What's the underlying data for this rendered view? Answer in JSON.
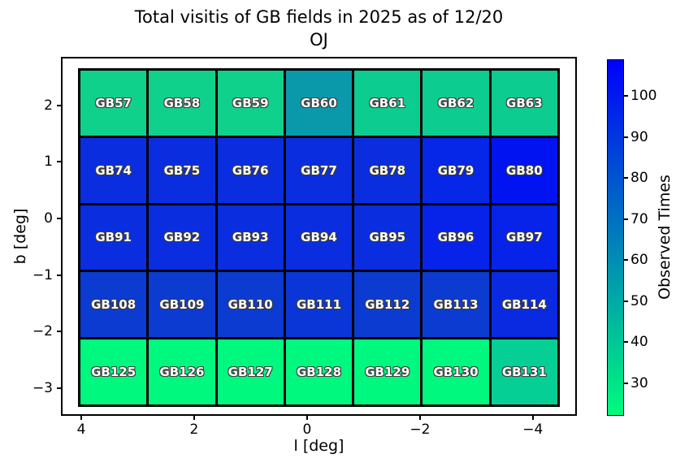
{
  "figure": {
    "title_line1": "Total visitis of GB fields in 2025 as of 12/20",
    "title_line2": "OJ"
  },
  "axes": {
    "xlabel": "l [deg]",
    "ylabel": "b [deg]",
    "x_ticks": [
      {
        "label": "4",
        "value": 4
      },
      {
        "label": "2",
        "value": 2
      },
      {
        "label": "0",
        "value": 0
      },
      {
        "label": "−2",
        "value": -2
      },
      {
        "label": "−4",
        "value": -4
      }
    ],
    "y_ticks": [
      {
        "label": "2",
        "value": 2
      },
      {
        "label": "1",
        "value": 1
      },
      {
        "label": "0",
        "value": 0
      },
      {
        "label": "−1",
        "value": -1
      },
      {
        "label": "−2",
        "value": -2
      },
      {
        "label": "−3",
        "value": -3
      }
    ],
    "xlim": [
      4.36,
      -4.78
    ],
    "ylim_bottom": -3.49,
    "ylim_top": 2.86,
    "x_inverted": true
  },
  "colorbar": {
    "label": "Observed Times",
    "ticks": [
      100,
      90,
      80,
      70,
      60,
      50,
      40,
      30
    ],
    "vmin": 22,
    "vmax": 109,
    "gradient_top_color": "#0000fa",
    "gradient_bottom_color": "#00fb7d"
  },
  "chart_data": {
    "type": "heatmap",
    "title": "Total visitis of GB fields in 2025 as of 12/20 OJ",
    "xlabel": "l [deg]",
    "ylabel": "b [deg]",
    "colorbar_label": "Observed Times",
    "colormap": "winter_r",
    "color_scale": {
      "vmin": 22,
      "vmax": 109
    },
    "grid_shape": {
      "rows": 5,
      "cols": 7
    },
    "l_centers": [
      3.4,
      2.2,
      1.0,
      -0.2,
      -1.4,
      -2.6,
      -3.9
    ],
    "b_centers": [
      2.05,
      0.85,
      -0.35,
      -1.55,
      -2.7
    ],
    "rows": [
      {
        "b_center": 2.05,
        "cells": [
          {
            "label": "GB57",
            "color": "#0fd18b",
            "value_est": 33
          },
          {
            "label": "GB58",
            "color": "#0fd18b",
            "value_est": 33
          },
          {
            "label": "GB59",
            "color": "#0fd18b",
            "value_est": 33
          },
          {
            "label": "GB60",
            "color": "#0a99ab",
            "value_est": 55
          },
          {
            "label": "GB61",
            "color": "#0ccc8f",
            "value_est": 34
          },
          {
            "label": "GB62",
            "color": "#0ccc8f",
            "value_est": 34
          },
          {
            "label": "GB63",
            "color": "#0ccc8f",
            "value_est": 34
          }
        ]
      },
      {
        "b_center": 0.85,
        "cells": [
          {
            "label": "GB74",
            "color": "#0a2edf",
            "value_est": 91
          },
          {
            "label": "GB75",
            "color": "#0a2edf",
            "value_est": 91
          },
          {
            "label": "GB76",
            "color": "#0a2edf",
            "value_est": 91
          },
          {
            "label": "GB77",
            "color": "#0a2edf",
            "value_est": 91
          },
          {
            "label": "GB78",
            "color": "#0a2edf",
            "value_est": 91
          },
          {
            "label": "GB79",
            "color": "#0626e8",
            "value_est": 95
          },
          {
            "label": "GB80",
            "color": "#0213f2",
            "value_est": 103
          }
        ]
      },
      {
        "b_center": -0.35,
        "cells": [
          {
            "label": "GB91",
            "color": "#0a2edf",
            "value_est": 91
          },
          {
            "label": "GB92",
            "color": "#0a2edf",
            "value_est": 91
          },
          {
            "label": "GB93",
            "color": "#0a2edf",
            "value_est": 91
          },
          {
            "label": "GB94",
            "color": "#0a2edf",
            "value_est": 91
          },
          {
            "label": "GB95",
            "color": "#0a2edf",
            "value_est": 91
          },
          {
            "label": "GB96",
            "color": "#0723e9",
            "value_est": 96
          },
          {
            "label": "GB97",
            "color": "#0723e9",
            "value_est": 96
          }
        ]
      },
      {
        "b_center": -1.55,
        "cells": [
          {
            "label": "GB108",
            "color": "#0c3bd2",
            "value_est": 85
          },
          {
            "label": "GB109",
            "color": "#0c3bd2",
            "value_est": 85
          },
          {
            "label": "GB110",
            "color": "#0c3bd2",
            "value_est": 85
          },
          {
            "label": "GB111",
            "color": "#0b36d7",
            "value_est": 86
          },
          {
            "label": "GB112",
            "color": "#0c3bd2",
            "value_est": 85
          },
          {
            "label": "GB113",
            "color": "#0c3bd2",
            "value_est": 85
          },
          {
            "label": "GB114",
            "color": "#0a2ae2",
            "value_est": 94
          }
        ]
      },
      {
        "b_center": -2.7,
        "cells": [
          {
            "label": "GB125",
            "color": "#00f87e",
            "value_est": 23
          },
          {
            "label": "GB126",
            "color": "#00f87e",
            "value_est": 23
          },
          {
            "label": "GB127",
            "color": "#00f87e",
            "value_est": 23
          },
          {
            "label": "GB128",
            "color": "#00f87e",
            "value_est": 23
          },
          {
            "label": "GB129",
            "color": "#00f87e",
            "value_est": 24
          },
          {
            "label": "GB130",
            "color": "#00f87e",
            "value_est": 24
          },
          {
            "label": "GB131",
            "color": "#06cf95",
            "value_est": 37
          }
        ]
      }
    ]
  }
}
